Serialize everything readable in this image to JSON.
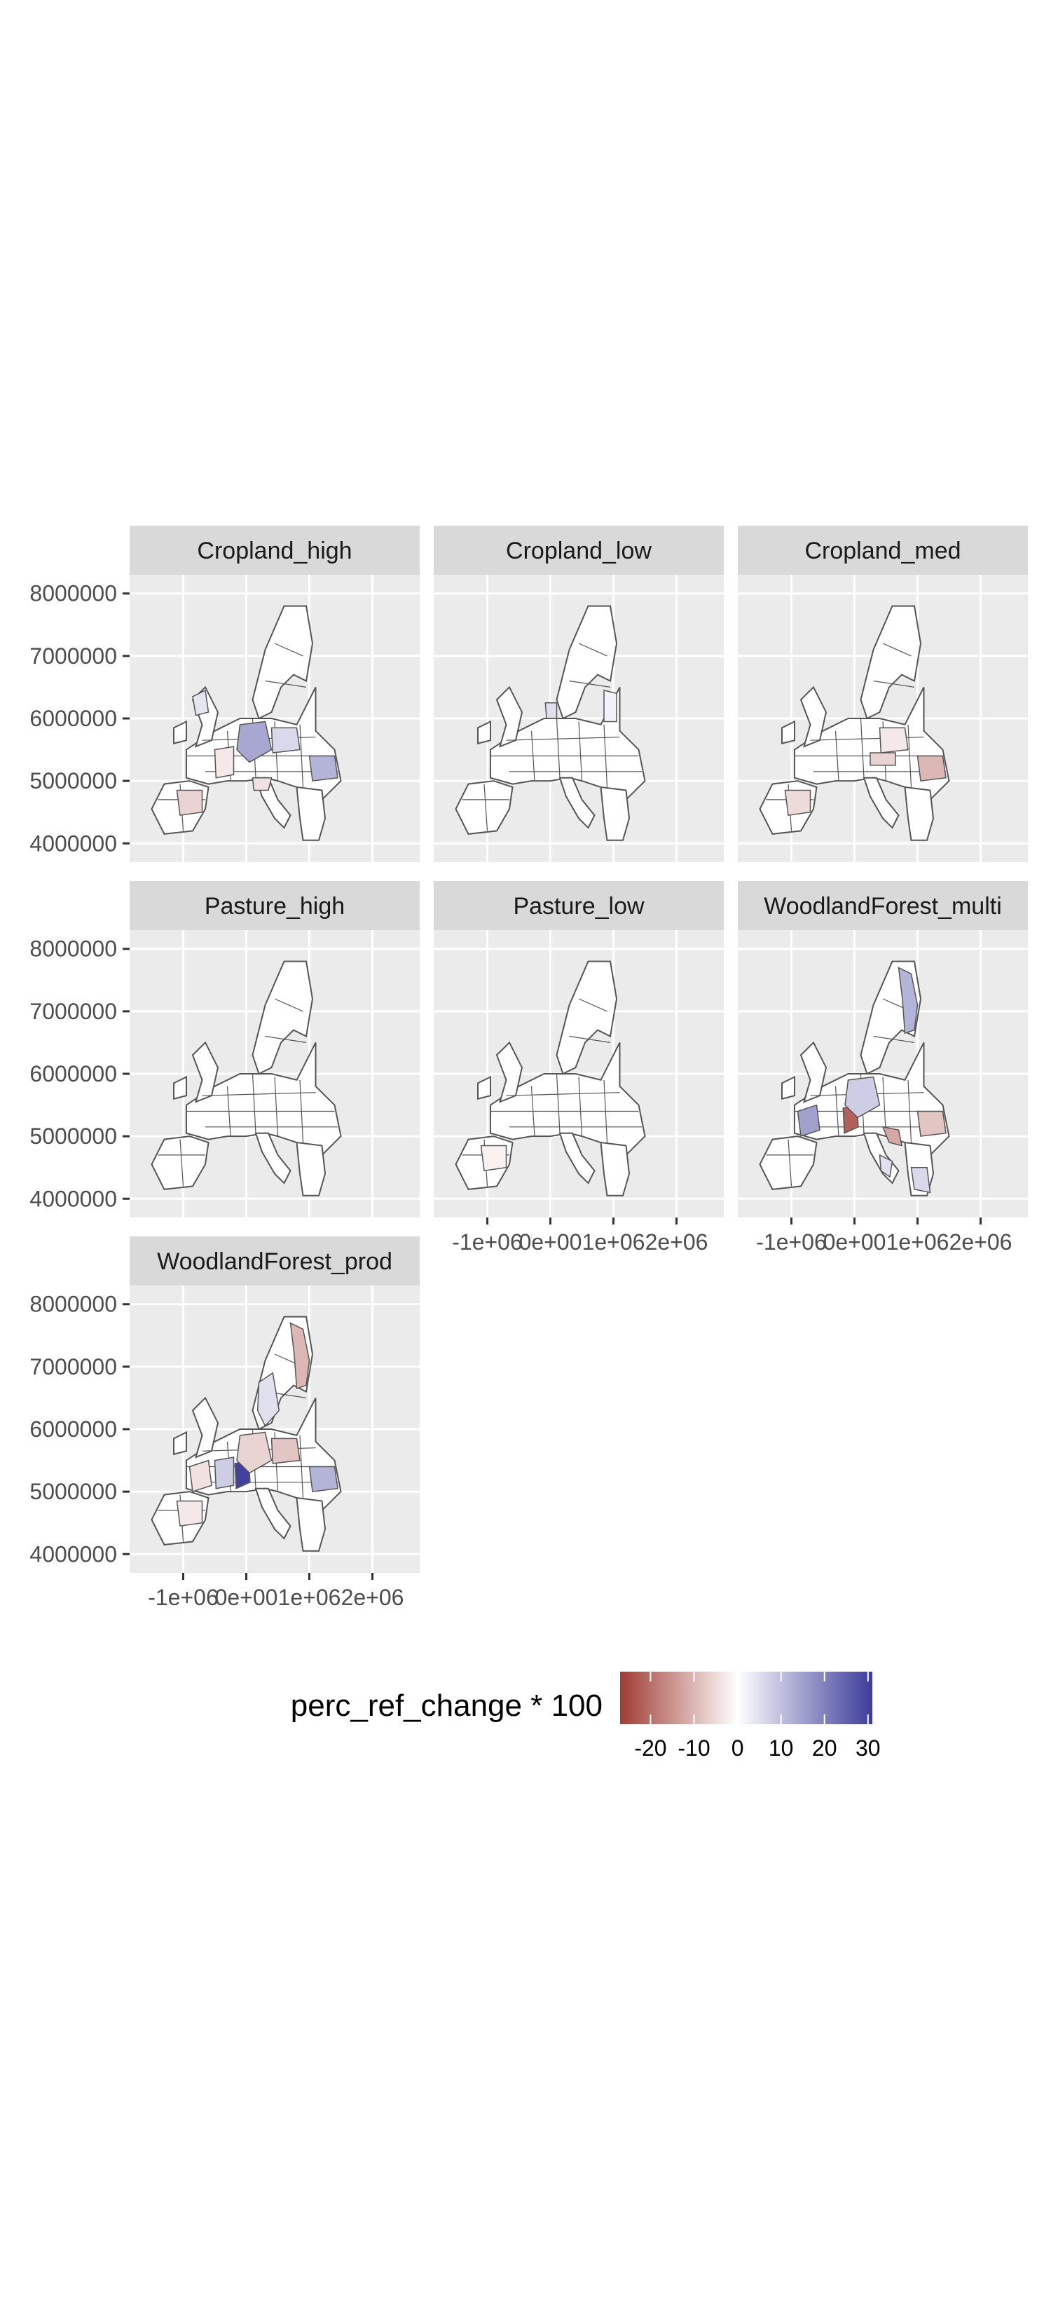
{
  "chart_data": {
    "type": "faceted-choropleth",
    "facets": [
      {
        "name": "Cropland_high",
        "highlights": [
          {
            "region": "central-europe",
            "value": 14
          },
          {
            "region": "romania-east",
            "value": 12
          },
          {
            "region": "spain-central",
            "value": -6
          },
          {
            "region": "france-east",
            "value": -3
          },
          {
            "region": "poland-south",
            "value": 6
          },
          {
            "region": "uk-north",
            "value": 4
          },
          {
            "region": "italy-north",
            "value": -4
          }
        ]
      },
      {
        "name": "Cropland_low",
        "highlights": [
          {
            "region": "denmark",
            "value": 5
          },
          {
            "region": "baltics",
            "value": 2
          }
        ]
      },
      {
        "name": "Cropland_med",
        "highlights": [
          {
            "region": "romania-east",
            "value": -10
          },
          {
            "region": "spain-central",
            "value": -5
          },
          {
            "region": "poland-south",
            "value": -3
          },
          {
            "region": "austria",
            "value": -6
          }
        ]
      },
      {
        "name": "Pasture_high",
        "highlights": []
      },
      {
        "name": "Pasture_low",
        "highlights": [
          {
            "region": "spain-central",
            "value": -2
          }
        ]
      },
      {
        "name": "WoodlandForest_multi",
        "highlights": [
          {
            "region": "alps-west",
            "value": -22
          },
          {
            "region": "france-west",
            "value": 15
          },
          {
            "region": "finland-east",
            "value": 12
          },
          {
            "region": "central-europe",
            "value": 8
          },
          {
            "region": "romania-east",
            "value": -8
          },
          {
            "region": "croatia",
            "value": -12
          },
          {
            "region": "greece",
            "value": 6
          },
          {
            "region": "italy-south",
            "value": 5
          }
        ]
      },
      {
        "name": "WoodlandForest_prod",
        "highlights": [
          {
            "region": "alps-west",
            "value": 30
          },
          {
            "region": "finland-east",
            "value": -10
          },
          {
            "region": "sweden-south",
            "value": 5
          },
          {
            "region": "central-europe",
            "value": -6
          },
          {
            "region": "poland-south",
            "value": -8
          },
          {
            "region": "romania-east",
            "value": 12
          },
          {
            "region": "france-west",
            "value": -4
          },
          {
            "region": "spain-central",
            "value": -3
          },
          {
            "region": "france-east",
            "value": 8
          }
        ]
      }
    ],
    "x_axis": {
      "ticks": [
        -1000000,
        0,
        1000000,
        2000000
      ],
      "tick_labels": [
        "-1e+06",
        "0e+00",
        "1e+06",
        "2e+06"
      ],
      "range": [
        -1850000,
        2750000
      ]
    },
    "y_axis": {
      "ticks": [
        4000000,
        5000000,
        6000000,
        7000000,
        8000000
      ],
      "tick_labels": [
        "4000000",
        "5000000",
        "6000000",
        "7000000",
        "8000000"
      ],
      "range": [
        3700000,
        8300000
      ]
    },
    "legend": {
      "title": "perc_ref_change * 100",
      "type": "gradient",
      "position": "bottom",
      "range": [
        -27,
        31
      ],
      "ticks": [
        -20,
        -10,
        0,
        10,
        20,
        30
      ],
      "tick_labels": [
        "-20",
        "-10",
        "0",
        "10",
        "20",
        "30"
      ],
      "colors": {
        "low": "#a03c34",
        "mid": "#ffffff",
        "high": "#3c3c9a"
      }
    },
    "grid": true,
    "panel_background": "#ebebeb",
    "strip_background": "#d9d9d9",
    "map_fill": "#ffffff",
    "map_outline": "#555555"
  }
}
